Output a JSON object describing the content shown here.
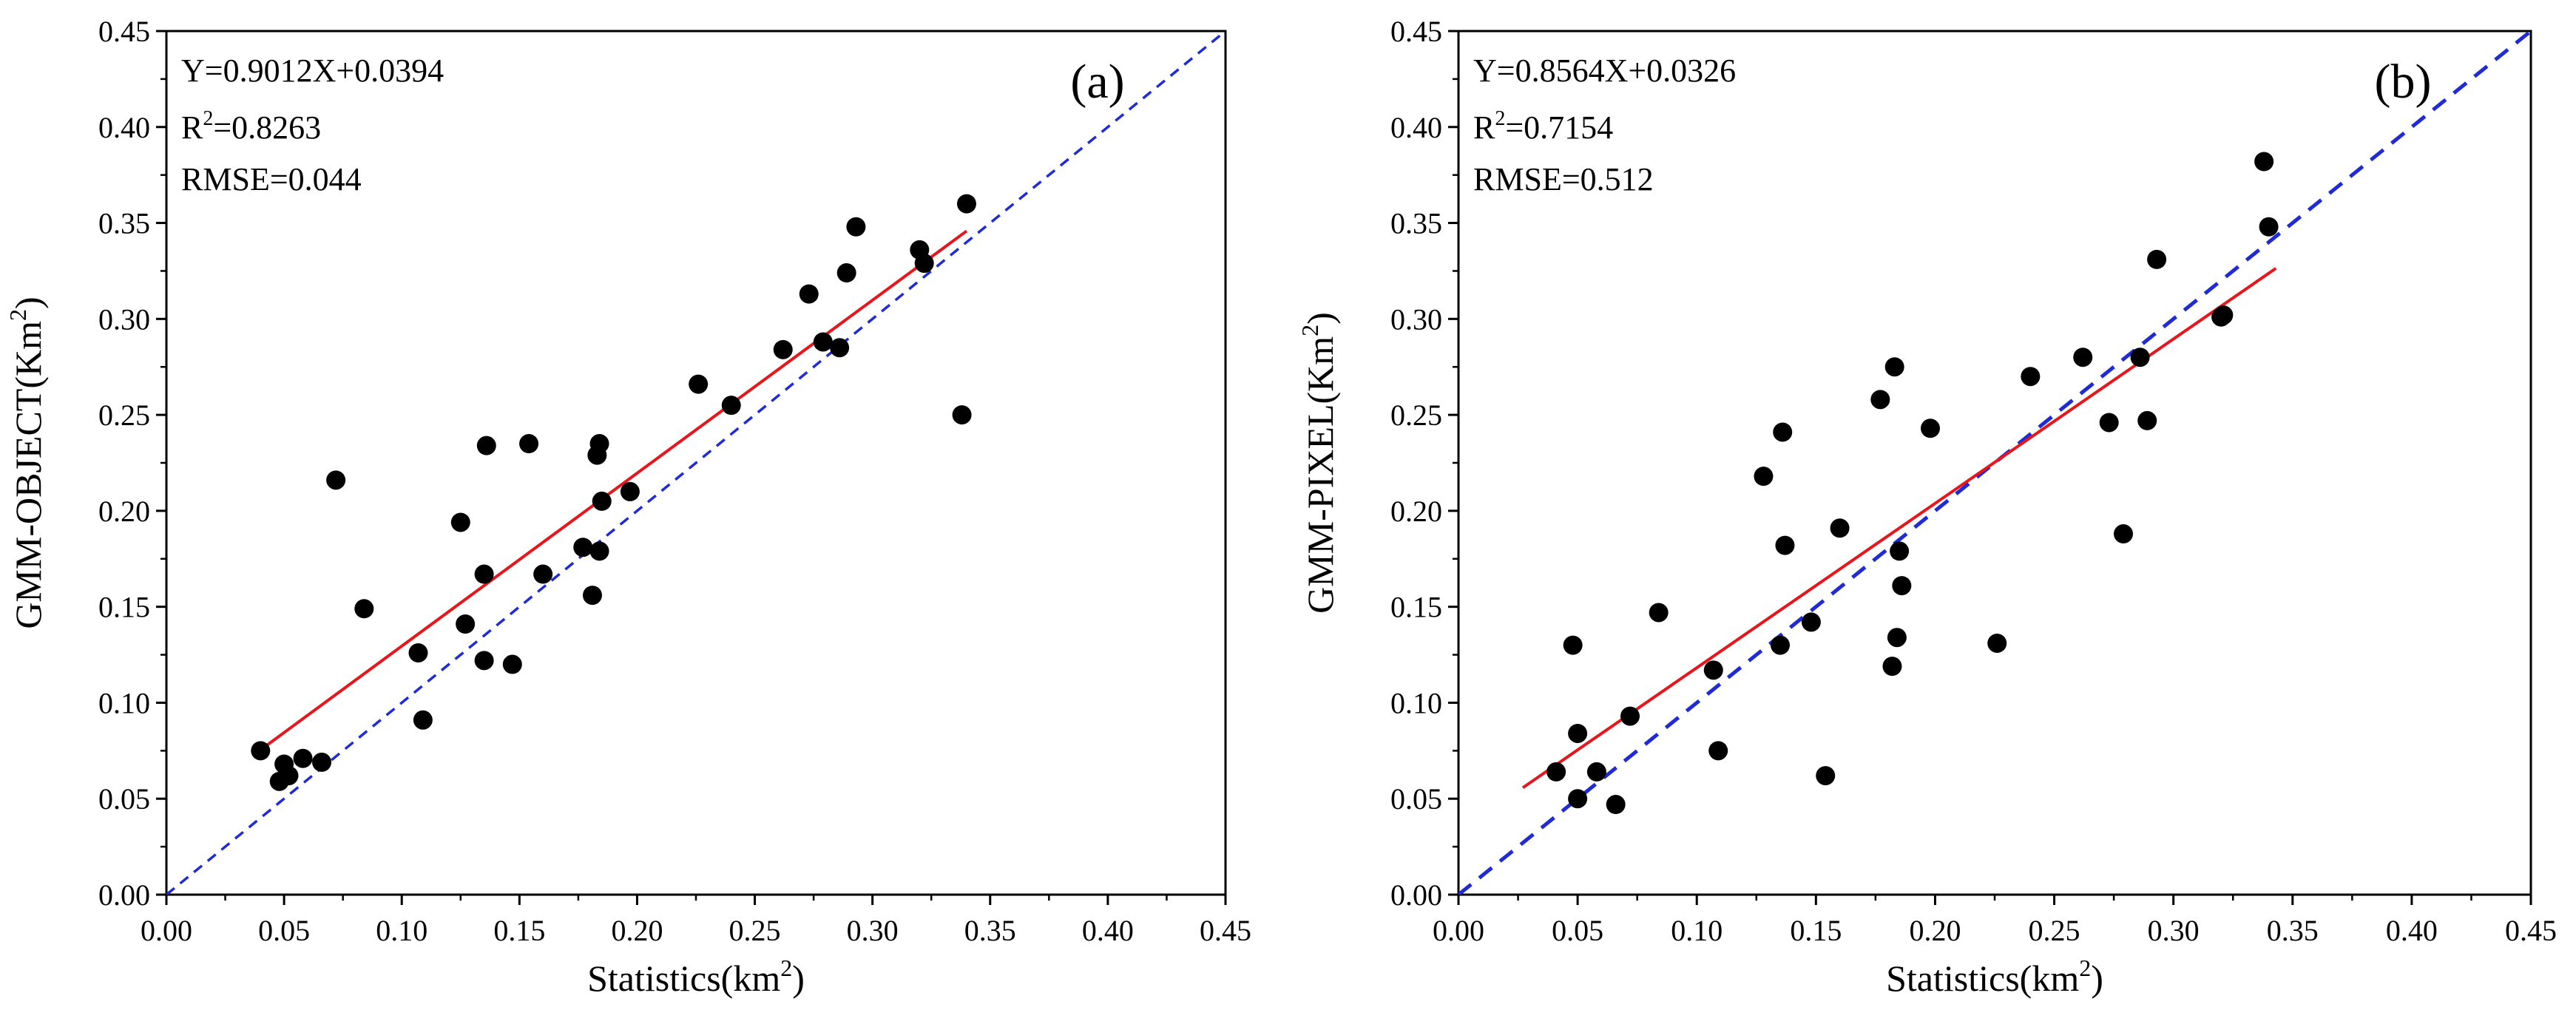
{
  "chart_data": [
    {
      "type": "scatter",
      "panel_label": "(a)",
      "xlabel": {
        "text": "Statistics(km",
        "sup": "2",
        "tail": ")"
      },
      "ylabel": {
        "text": "GMM-OBJECT(Km",
        "sup": "2",
        "tail": ")"
      },
      "xlim": [
        0,
        0.45
      ],
      "ylim": [
        0,
        0.45
      ],
      "ticks": [
        "0.00",
        "0.05",
        "0.10",
        "0.15",
        "0.20",
        "0.25",
        "0.30",
        "0.35",
        "0.40",
        "0.45"
      ],
      "tick_values": [
        0,
        0.05,
        0.1,
        0.15,
        0.2,
        0.25,
        0.3,
        0.35,
        0.4,
        0.45
      ],
      "annotations": {
        "equation": "Y=0.9012X+0.0394",
        "r2_prefix": "R",
        "r2_sup": "2",
        "r2_value": "=0.8263",
        "rmse": "RMSE=0.044"
      },
      "fit_line": {
        "slope": 0.9012,
        "intercept": 0.0394,
        "x_start": 0.04,
        "x_end": 0.34,
        "color": "#e8151b"
      },
      "identity_line": {
        "color": "#1f2bd6"
      },
      "points": [
        [
          0.04,
          0.075
        ],
        [
          0.048,
          0.059
        ],
        [
          0.05,
          0.068
        ],
        [
          0.052,
          0.062
        ],
        [
          0.058,
          0.071
        ],
        [
          0.066,
          0.069
        ],
        [
          0.072,
          0.216
        ],
        [
          0.084,
          0.149
        ],
        [
          0.107,
          0.126
        ],
        [
          0.109,
          0.091
        ],
        [
          0.125,
          0.194
        ],
        [
          0.127,
          0.141
        ],
        [
          0.135,
          0.167
        ],
        [
          0.135,
          0.122
        ],
        [
          0.136,
          0.234
        ],
        [
          0.147,
          0.12
        ],
        [
          0.154,
          0.235
        ],
        [
          0.16,
          0.167
        ],
        [
          0.177,
          0.181
        ],
        [
          0.181,
          0.156
        ],
        [
          0.183,
          0.229
        ],
        [
          0.184,
          0.235
        ],
        [
          0.184,
          0.179
        ],
        [
          0.185,
          0.205
        ],
        [
          0.197,
          0.21
        ],
        [
          0.226,
          0.266
        ],
        [
          0.24,
          0.255
        ],
        [
          0.262,
          0.284
        ],
        [
          0.273,
          0.313
        ],
        [
          0.279,
          0.288
        ],
        [
          0.286,
          0.285
        ],
        [
          0.289,
          0.324
        ],
        [
          0.293,
          0.348
        ],
        [
          0.32,
          0.336
        ],
        [
          0.322,
          0.329
        ],
        [
          0.338,
          0.25
        ],
        [
          0.34,
          0.36
        ]
      ]
    },
    {
      "type": "scatter",
      "panel_label": "(b)",
      "xlabel": {
        "text": "Statistics(km",
        "sup": "2",
        "tail": ")"
      },
      "ylabel": {
        "text": "GMM-PIXEL(Km",
        "sup": "2",
        "tail": ")"
      },
      "xlim": [
        0,
        0.45
      ],
      "ylim": [
        0,
        0.45
      ],
      "ticks": [
        "0.00",
        "0.05",
        "0.10",
        "0.15",
        "0.20",
        "0.25",
        "0.30",
        "0.35",
        "0.40",
        "0.45"
      ],
      "tick_values": [
        0,
        0.05,
        0.1,
        0.15,
        0.2,
        0.25,
        0.3,
        0.35,
        0.4,
        0.45
      ],
      "annotations": {
        "equation": "Y=0.8564X+0.0326",
        "r2_prefix": "R",
        "r2_sup": "2",
        "r2_value": "=0.7154",
        "rmse": "RMSE=0.512"
      },
      "fit_line": {
        "slope": 0.8564,
        "intercept": 0.0326,
        "x_start": 0.027,
        "x_end": 0.343,
        "color": "#e8151b"
      },
      "identity_line": {
        "color": "#1f2bd6"
      },
      "points": [
        [
          0.041,
          0.064
        ],
        [
          0.048,
          0.13
        ],
        [
          0.05,
          0.084
        ],
        [
          0.05,
          0.05
        ],
        [
          0.058,
          0.064
        ],
        [
          0.066,
          0.047
        ],
        [
          0.072,
          0.093
        ],
        [
          0.084,
          0.147
        ],
        [
          0.107,
          0.117
        ],
        [
          0.109,
          0.075
        ],
        [
          0.128,
          0.218
        ],
        [
          0.135,
          0.13
        ],
        [
          0.136,
          0.241
        ],
        [
          0.137,
          0.182
        ],
        [
          0.148,
          0.142
        ],
        [
          0.154,
          0.062
        ],
        [
          0.16,
          0.191
        ],
        [
          0.177,
          0.258
        ],
        [
          0.182,
          0.119
        ],
        [
          0.183,
          0.275
        ],
        [
          0.184,
          0.134
        ],
        [
          0.185,
          0.179
        ],
        [
          0.186,
          0.161
        ],
        [
          0.198,
          0.243
        ],
        [
          0.226,
          0.131
        ],
        [
          0.24,
          0.27
        ],
        [
          0.262,
          0.28
        ],
        [
          0.273,
          0.246
        ],
        [
          0.279,
          0.188
        ],
        [
          0.286,
          0.28
        ],
        [
          0.289,
          0.247
        ],
        [
          0.293,
          0.331
        ],
        [
          0.32,
          0.301
        ],
        [
          0.321,
          0.302
        ],
        [
          0.338,
          0.382
        ],
        [
          0.34,
          0.348
        ]
      ]
    }
  ]
}
